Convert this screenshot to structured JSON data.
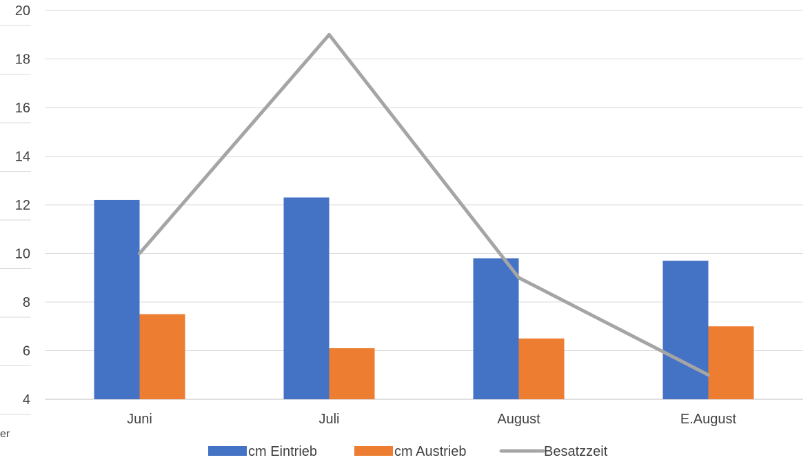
{
  "chart_data": {
    "type": "bar",
    "title": "",
    "xlabel": "",
    "ylabel": "",
    "categories": [
      "Juni",
      "Juli",
      "August",
      "E.August"
    ],
    "ylim": [
      4,
      20
    ],
    "yticks": [
      4,
      6,
      8,
      10,
      12,
      14,
      16,
      18,
      20
    ],
    "grid": true,
    "legend_position": "bottom",
    "series": [
      {
        "name": "cm Eintrieb",
        "type": "bar",
        "color": "#4472C4",
        "values": [
          12.2,
          12.3,
          9.8,
          9.7
        ]
      },
      {
        "name": "cm Austrieb",
        "type": "bar",
        "color": "#ED7D31",
        "values": [
          7.5,
          6.1,
          6.5,
          7.0
        ]
      },
      {
        "name": "Besatzzeit",
        "type": "line",
        "color": "#A5A5A5",
        "values": [
          10,
          19,
          9,
          5
        ]
      }
    ]
  },
  "edge_fragment": "er"
}
